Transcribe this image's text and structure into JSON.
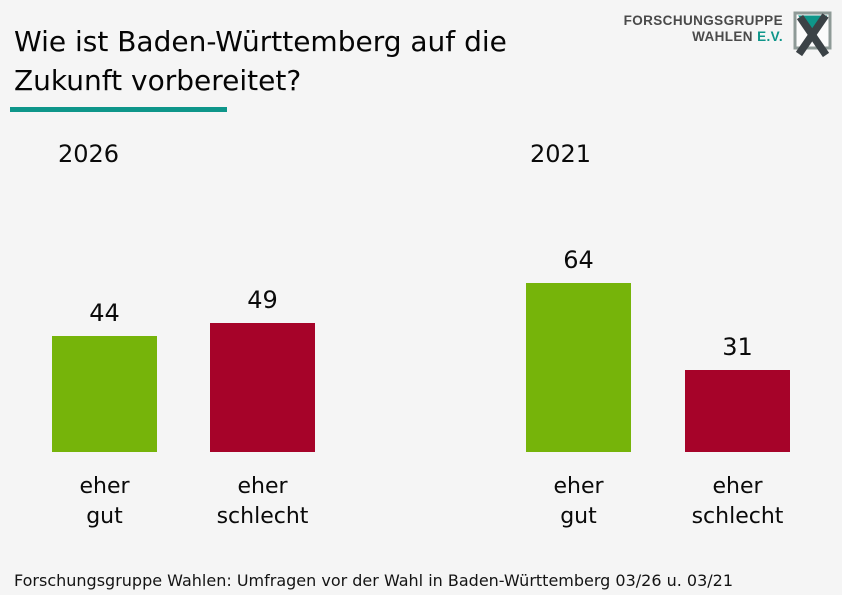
{
  "header": {
    "title": "Wie ist Baden-Württemberg auf die Zukunft vorbereitet?",
    "logo": {
      "line1": "FORSCHUNGSGRUPPE",
      "line2": "WAHLEN",
      "suffix": "E.V."
    }
  },
  "colors": {
    "teal": "#0e968a",
    "green": "#76b40a",
    "red": "#a60329",
    "background": "#f5f5f5"
  },
  "footer": {
    "source": "Forschungsgruppe Wahlen: Umfragen vor der Wahl in Baden-Württemberg 03/26 u. 03/21"
  },
  "chart_data": {
    "type": "bar",
    "title": "Wie ist Baden-Württemberg auf die Zukunft vorbereitet?",
    "legend": "none",
    "grid": false,
    "axes_hidden": true,
    "value_labels_shown": true,
    "groups": [
      {
        "year": "2026",
        "bars": [
          {
            "label": "eher gut",
            "label_lines": [
              "eher",
              "gut"
            ],
            "value": 44,
            "color": "#76b40a"
          },
          {
            "label": "eher schlecht",
            "label_lines": [
              "eher",
              "schlecht"
            ],
            "value": 49,
            "color": "#a60329"
          }
        ]
      },
      {
        "year": "2021",
        "bars": [
          {
            "label": "eher gut",
            "label_lines": [
              "eher",
              "gut"
            ],
            "value": 64,
            "color": "#76b40a"
          },
          {
            "label": "eher schlecht",
            "label_lines": [
              "eher",
              "schlecht"
            ],
            "value": 31,
            "color": "#a60329"
          }
        ]
      }
    ]
  }
}
